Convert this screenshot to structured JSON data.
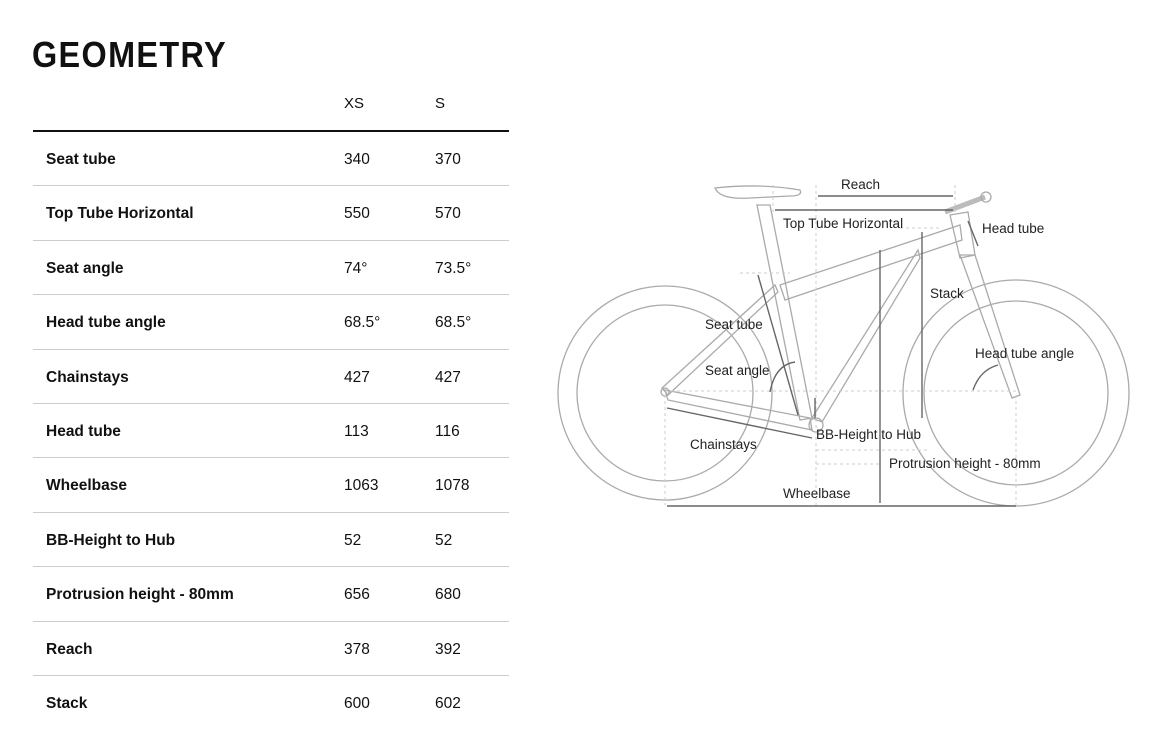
{
  "title": "GEOMETRY",
  "columns": [
    "XS",
    "S"
  ],
  "rows": [
    {
      "label": "Seat tube",
      "xs": "340",
      "s": "370"
    },
    {
      "label": "Top Tube Horizontal",
      "xs": "550",
      "s": "570"
    },
    {
      "label": "Seat angle",
      "xs": "74°",
      "s": "73.5°"
    },
    {
      "label": "Head tube angle",
      "xs": "68.5°",
      "s": "68.5°"
    },
    {
      "label": "Chainstays",
      "xs": "427",
      "s": "427"
    },
    {
      "label": "Head tube",
      "xs": "113",
      "s": "116"
    },
    {
      "label": "Wheelbase",
      "xs": "1063",
      "s": "1078"
    },
    {
      "label": "BB-Height to Hub",
      "xs": "52",
      "s": "52"
    },
    {
      "label": "Protrusion height - 80mm",
      "xs": "656",
      "s": "680"
    },
    {
      "label": "Reach",
      "xs": "378",
      "s": "392"
    },
    {
      "label": "Stack",
      "xs": "600",
      "s": "602"
    }
  ],
  "diagram": {
    "reach": "Reach",
    "top_tube": "Top Tube Horizontal",
    "head_tube": "Head tube",
    "stack": "Stack",
    "seat_tube": "Seat tube",
    "seat_angle": "Seat angle",
    "head_tube_angle": "Head tube angle",
    "chainstays": "Chainstays",
    "bb_height": "BB-Height to Hub",
    "protrusion": "Protrusion height - 80mm",
    "wheelbase": "Wheelbase"
  }
}
